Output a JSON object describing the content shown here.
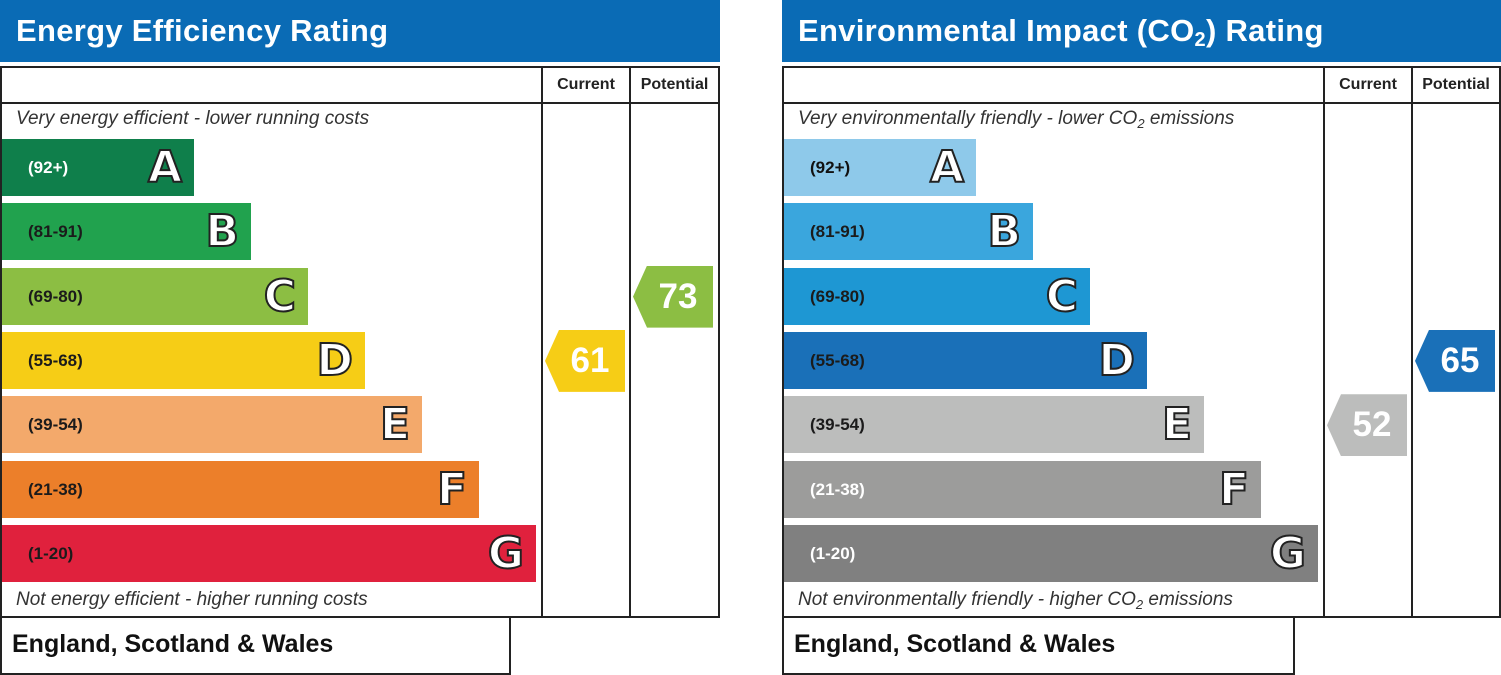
{
  "chart_data": [
    {
      "type": "bar",
      "title": "Energy Efficiency Rating",
      "column_headers": [
        "Current",
        "Potential"
      ],
      "top_caption": "Very energy efficient - lower running costs",
      "bottom_caption": "Not energy efficient - higher running costs",
      "footer": "England, Scotland & Wales",
      "bands": [
        {
          "range": "(92+)",
          "letter": "A",
          "color": "#0f7f4b",
          "text_color": "#ffffff"
        },
        {
          "range": "(81-91)",
          "letter": "B",
          "color": "#21a24e",
          "text_color": "#1b1b1b"
        },
        {
          "range": "(69-80)",
          "letter": "C",
          "color": "#8cbe43",
          "text_color": "#1b1b1b"
        },
        {
          "range": "(55-68)",
          "letter": "D",
          "color": "#f6cd16",
          "text_color": "#1b1b1b"
        },
        {
          "range": "(39-54)",
          "letter": "E",
          "color": "#f3a96b",
          "text_color": "#1b1b1b"
        },
        {
          "range": "(21-38)",
          "letter": "F",
          "color": "#ec7f2a",
          "text_color": "#1b1b1b"
        },
        {
          "range": "(1-20)",
          "letter": "G",
          "color": "#e0213d",
          "text_color": "#1b1b1b"
        }
      ],
      "current": {
        "value": 61,
        "band": "D",
        "color": "#f6cd16"
      },
      "potential": {
        "value": 73,
        "band": "C",
        "color": "#8cbe43"
      }
    },
    {
      "type": "bar",
      "title_main": "Environmental Impact (CO",
      "title_sub": "2",
      "title_tail": ") Rating",
      "column_headers": [
        "Current",
        "Potential"
      ],
      "top_caption_main": "Very environmentally friendly - lower CO",
      "top_caption_sub": "2",
      "top_caption_tail": " emissions",
      "bottom_caption_main": "Not environmentally friendly - higher CO",
      "bottom_caption_sub": "2",
      "bottom_caption_tail": " emissions",
      "footer": "England, Scotland & Wales",
      "bands": [
        {
          "range": "(92+)",
          "letter": "A",
          "color": "#8ec9ea",
          "text_color": "#111111"
        },
        {
          "range": "(81-91)",
          "letter": "B",
          "color": "#3aa6dd",
          "text_color": "#1b1b1b"
        },
        {
          "range": "(69-80)",
          "letter": "C",
          "color": "#1e97d3",
          "text_color": "#1b1b1b"
        },
        {
          "range": "(55-68)",
          "letter": "D",
          "color": "#1a70b8",
          "text_color": "#1b1b1b"
        },
        {
          "range": "(39-54)",
          "letter": "E",
          "color": "#bcbdbc",
          "text_color": "#1b1b1b"
        },
        {
          "range": "(21-38)",
          "letter": "F",
          "color": "#9c9c9b",
          "text_color": "#ffffff"
        },
        {
          "range": "(1-20)",
          "letter": "G",
          "color": "#808080",
          "text_color": "#ffffff"
        }
      ],
      "current": {
        "value": 52,
        "band": "E",
        "color": "#bcbdbc"
      },
      "potential": {
        "value": 65,
        "band": "D",
        "color": "#1a70b8"
      }
    }
  ]
}
